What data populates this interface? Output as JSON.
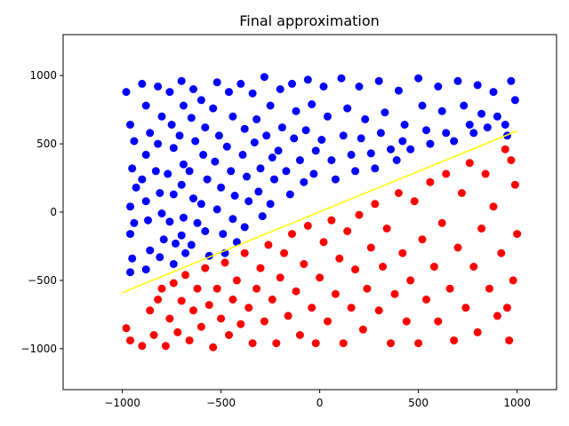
{
  "chart_data": {
    "type": "scatter",
    "title": "Final approximation",
    "xlabel": "",
    "ylabel": "",
    "xlim": [
      -1300,
      1200
    ],
    "ylim": [
      -1300,
      1300
    ],
    "xticks": [
      -1000,
      -500,
      0,
      500,
      1000
    ],
    "xtick_labels": [
      "−1000",
      "−500",
      "0",
      "500",
      "1000"
    ],
    "yticks": [
      -1000,
      -500,
      0,
      500,
      1000
    ],
    "ytick_labels": [
      "−1000",
      "−500",
      "0",
      "500",
      "1000"
    ],
    "grid": false,
    "boundary_line": {
      "color": "#ffff00",
      "points": [
        [
          -1000,
          -590
        ],
        [
          1000,
          595
        ]
      ]
    },
    "series": [
      {
        "color": "#0000ff",
        "points": [
          [
            -980,
            880
          ],
          [
            -960,
            640
          ],
          [
            -940,
            520
          ],
          [
            -950,
            320
          ],
          [
            -930,
            180
          ],
          [
            -960,
            40
          ],
          [
            -940,
            -80
          ],
          [
            -960,
            -160
          ],
          [
            -950,
            -340
          ],
          [
            -960,
            -440
          ],
          [
            -900,
            940
          ],
          [
            -880,
            780
          ],
          [
            -860,
            580
          ],
          [
            -880,
            420
          ],
          [
            -900,
            240
          ],
          [
            -880,
            80
          ],
          [
            -870,
            -60
          ],
          [
            -860,
            -280
          ],
          [
            -880,
            -420
          ],
          [
            -820,
            920
          ],
          [
            -800,
            700
          ],
          [
            -820,
            500
          ],
          [
            -830,
            300
          ],
          [
            -810,
            140
          ],
          [
            -800,
            -10
          ],
          [
            -790,
            -200
          ],
          [
            -810,
            -330
          ],
          [
            -760,
            880
          ],
          [
            -750,
            640
          ],
          [
            -740,
            470
          ],
          [
            -770,
            280
          ],
          [
            -740,
            130
          ],
          [
            -760,
            -70
          ],
          [
            -730,
            -230
          ],
          [
            -740,
            -380
          ],
          [
            -700,
            960
          ],
          [
            -690,
            780
          ],
          [
            -710,
            560
          ],
          [
            -690,
            350
          ],
          [
            -700,
            200
          ],
          [
            -690,
            -40
          ],
          [
            -700,
            -170
          ],
          [
            -680,
            -300
          ],
          [
            -640,
            900
          ],
          [
            -650,
            690
          ],
          [
            -630,
            520
          ],
          [
            -660,
            300
          ],
          [
            -640,
            100
          ],
          [
            -620,
            -80
          ],
          [
            -650,
            -240
          ],
          [
            -600,
            820
          ],
          [
            -580,
            620
          ],
          [
            -590,
            420
          ],
          [
            -570,
            240
          ],
          [
            -600,
            60
          ],
          [
            -580,
            -140
          ],
          [
            -560,
            -320
          ],
          [
            -520,
            950
          ],
          [
            -540,
            760
          ],
          [
            -510,
            560
          ],
          [
            -530,
            370
          ],
          [
            -500,
            180
          ],
          [
            -520,
            20
          ],
          [
            -490,
            -160
          ],
          [
            -480,
            -300
          ],
          [
            -460,
            880
          ],
          [
            -440,
            700
          ],
          [
            -470,
            480
          ],
          [
            -450,
            300
          ],
          [
            -430,
            120
          ],
          [
            -440,
            -50
          ],
          [
            -420,
            -220
          ],
          [
            -400,
            940
          ],
          [
            -380,
            610
          ],
          [
            -390,
            420
          ],
          [
            -370,
            260
          ],
          [
            -360,
            80
          ],
          [
            -380,
            -110
          ],
          [
            -340,
            870
          ],
          [
            -320,
            680
          ],
          [
            -330,
            510
          ],
          [
            -300,
            320
          ],
          [
            -310,
            150
          ],
          [
            -290,
            -30
          ],
          [
            -280,
            990
          ],
          [
            -250,
            780
          ],
          [
            -270,
            560
          ],
          [
            -240,
            400
          ],
          [
            -230,
            240
          ],
          [
            -250,
            60
          ],
          [
            -200,
            900
          ],
          [
            -190,
            620
          ],
          [
            -210,
            450
          ],
          [
            -170,
            300
          ],
          [
            -150,
            130
          ],
          [
            -140,
            940
          ],
          [
            -120,
            740
          ],
          [
            -130,
            540
          ],
          [
            -100,
            380
          ],
          [
            -80,
            220
          ],
          [
            -60,
            970
          ],
          [
            -40,
            790
          ],
          [
            -70,
            600
          ],
          [
            -20,
            450
          ],
          [
            -30,
            280
          ],
          [
            20,
            920
          ],
          [
            40,
            700
          ],
          [
            10,
            530
          ],
          [
            60,
            380
          ],
          [
            80,
            240
          ],
          [
            110,
            980
          ],
          [
            140,
            760
          ],
          [
            120,
            560
          ],
          [
            160,
            420
          ],
          [
            180,
            300
          ],
          [
            200,
            920
          ],
          [
            230,
            680
          ],
          [
            210,
            540
          ],
          [
            260,
            430
          ],
          [
            280,
            320
          ],
          [
            300,
            960
          ],
          [
            330,
            730
          ],
          [
            310,
            580
          ],
          [
            360,
            460
          ],
          [
            390,
            380
          ],
          [
            400,
            890
          ],
          [
            430,
            640
          ],
          [
            420,
            520
          ],
          [
            460,
            460
          ],
          [
            500,
            980
          ],
          [
            520,
            780
          ],
          [
            540,
            600
          ],
          [
            560,
            500
          ],
          [
            600,
            920
          ],
          [
            620,
            740
          ],
          [
            640,
            580
          ],
          [
            680,
            520
          ],
          [
            700,
            960
          ],
          [
            730,
            780
          ],
          [
            760,
            640
          ],
          [
            780,
            580
          ],
          [
            800,
            930
          ],
          [
            820,
            720
          ],
          [
            850,
            620
          ],
          [
            880,
            880
          ],
          [
            900,
            700
          ],
          [
            940,
            640
          ],
          [
            970,
            960
          ],
          [
            990,
            820
          ],
          [
            950,
            560
          ]
        ]
      },
      {
        "color": "#ff0000",
        "points": [
          [
            -980,
            -850
          ],
          [
            -960,
            -940
          ],
          [
            -900,
            -980
          ],
          [
            -860,
            -720
          ],
          [
            -840,
            -900
          ],
          [
            -820,
            -640
          ],
          [
            -800,
            -560
          ],
          [
            -780,
            -980
          ],
          [
            -760,
            -780
          ],
          [
            -740,
            -520
          ],
          [
            -720,
            -880
          ],
          [
            -700,
            -650
          ],
          [
            -680,
            -460
          ],
          [
            -660,
            -940
          ],
          [
            -640,
            -720
          ],
          [
            -620,
            -560
          ],
          [
            -600,
            -840
          ],
          [
            -580,
            -410
          ],
          [
            -560,
            -680
          ],
          [
            -540,
            -990
          ],
          [
            -520,
            -560
          ],
          [
            -500,
            -780
          ],
          [
            -480,
            -370
          ],
          [
            -460,
            -900
          ],
          [
            -440,
            -640
          ],
          [
            -420,
            -500
          ],
          [
            -400,
            -820
          ],
          [
            -380,
            -300
          ],
          [
            -360,
            -700
          ],
          [
            -340,
            -960
          ],
          [
            -320,
            -560
          ],
          [
            -300,
            -410
          ],
          [
            -280,
            -800
          ],
          [
            -260,
            -240
          ],
          [
            -240,
            -640
          ],
          [
            -220,
            -960
          ],
          [
            -200,
            -480
          ],
          [
            -180,
            -300
          ],
          [
            -160,
            -760
          ],
          [
            -140,
            -160
          ],
          [
            -120,
            -580
          ],
          [
            -100,
            -900
          ],
          [
            -80,
            -380
          ],
          [
            -60,
            -100
          ],
          [
            -40,
            -700
          ],
          [
            -20,
            -960
          ],
          [
            0,
            -480
          ],
          [
            20,
            -220
          ],
          [
            40,
            -800
          ],
          [
            60,
            -60
          ],
          [
            80,
            -600
          ],
          [
            100,
            -340
          ],
          [
            120,
            -960
          ],
          [
            140,
            -140
          ],
          [
            160,
            -700
          ],
          [
            180,
            -420
          ],
          [
            200,
            -20
          ],
          [
            220,
            -860
          ],
          [
            240,
            -560
          ],
          [
            260,
            -260
          ],
          [
            280,
            60
          ],
          [
            300,
            -720
          ],
          [
            320,
            -400
          ],
          [
            340,
            -120
          ],
          [
            360,
            -960
          ],
          [
            380,
            -600
          ],
          [
            400,
            140
          ],
          [
            420,
            -300
          ],
          [
            440,
            -800
          ],
          [
            460,
            -500
          ],
          [
            480,
            80
          ],
          [
            500,
            -960
          ],
          [
            520,
            -200
          ],
          [
            540,
            -640
          ],
          [
            560,
            220
          ],
          [
            580,
            -400
          ],
          [
            600,
            -800
          ],
          [
            620,
            -80
          ],
          [
            640,
            280
          ],
          [
            660,
            -560
          ],
          [
            680,
            -940
          ],
          [
            700,
            -260
          ],
          [
            720,
            140
          ],
          [
            740,
            -700
          ],
          [
            760,
            360
          ],
          [
            780,
            -400
          ],
          [
            800,
            -880
          ],
          [
            820,
            -120
          ],
          [
            840,
            280
          ],
          [
            860,
            -560
          ],
          [
            880,
            40
          ],
          [
            900,
            -760
          ],
          [
            920,
            -300
          ],
          [
            940,
            460
          ],
          [
            960,
            -940
          ],
          [
            980,
            -500
          ],
          [
            1000,
            -160
          ],
          [
            990,
            200
          ],
          [
            970,
            380
          ],
          [
            950,
            -700
          ]
        ]
      }
    ]
  }
}
